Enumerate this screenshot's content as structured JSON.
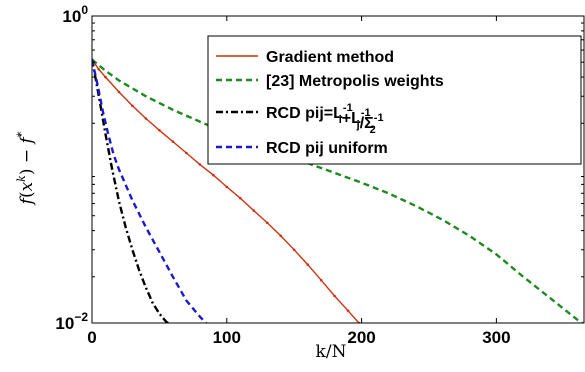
{
  "chart_data": {
    "type": "line",
    "title": "",
    "xlabel": "k/N",
    "ylabel": "f(x^k) − f*",
    "xlim": [
      0,
      365
    ],
    "ylim": [
      0.01,
      1
    ],
    "yscale": "log",
    "grid": false,
    "legend_position": "top-right",
    "x_ticks": [
      {
        "value": 0,
        "label": "0"
      },
      {
        "value": 100,
        "label": "100"
      },
      {
        "value": 200,
        "label": "200"
      },
      {
        "value": 300,
        "label": "300"
      }
    ],
    "y_ticks": [
      {
        "value": 1,
        "base": "10",
        "exp": "0"
      },
      {
        "value": 0.01,
        "base": "10",
        "exp": "−2"
      }
    ],
    "series": [
      {
        "name": "Gradient method",
        "color": "#cc3311",
        "style": "solid",
        "x": [
          0,
          5,
          10,
          20,
          30,
          40,
          50,
          60,
          70,
          80,
          90,
          100,
          110,
          120,
          130,
          140,
          150,
          160,
          170,
          180,
          190,
          198
        ],
        "y": [
          0.52,
          0.45,
          0.4,
          0.32,
          0.26,
          0.215,
          0.18,
          0.152,
          0.128,
          0.108,
          0.092,
          0.077,
          0.065,
          0.054,
          0.045,
          0.037,
          0.03,
          0.024,
          0.019,
          0.015,
          0.012,
          0.01
        ]
      },
      {
        "name": "[23] Metropolis weights",
        "color": "#1f8a1f",
        "style": "dashed",
        "x": [
          0,
          10,
          20,
          40,
          60,
          80,
          100,
          120,
          140,
          160,
          180,
          200,
          220,
          240,
          260,
          280,
          300,
          320,
          340,
          360,
          365
        ],
        "y": [
          0.52,
          0.44,
          0.38,
          0.3,
          0.245,
          0.205,
          0.172,
          0.147,
          0.127,
          0.11,
          0.095,
          0.082,
          0.07,
          0.058,
          0.047,
          0.037,
          0.028,
          0.02,
          0.0145,
          0.0105,
          0.0098
        ]
      },
      {
        "name": "RCD pij=L_i^{-1}+L_j^{-1}/Σ_2^{-1}",
        "color": "#000000",
        "style": "dashdot",
        "x": [
          0,
          3,
          6,
          10,
          15,
          20,
          25,
          30,
          35,
          40,
          45,
          50,
          55,
          58
        ],
        "y": [
          0.52,
          0.38,
          0.27,
          0.17,
          0.1,
          0.062,
          0.042,
          0.03,
          0.022,
          0.017,
          0.0135,
          0.0115,
          0.0102,
          0.0098
        ]
      },
      {
        "name": "RCD pij uniform",
        "color": "#1a1acc",
        "style": "dashed",
        "x": [
          0,
          4,
          8,
          12,
          16,
          20,
          30,
          40,
          50,
          60,
          70,
          80,
          85
        ],
        "y": [
          0.52,
          0.36,
          0.24,
          0.17,
          0.125,
          0.1,
          0.063,
          0.042,
          0.029,
          0.02,
          0.014,
          0.011,
          0.0099
        ]
      }
    ]
  }
}
